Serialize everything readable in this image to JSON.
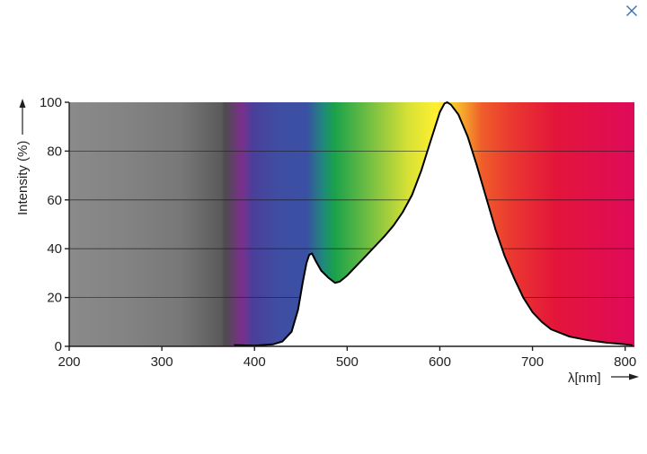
{
  "close_icon": "close-icon",
  "chart_data": {
    "type": "area",
    "title": "",
    "xlabel": "λ[nm]",
    "ylabel": "Intensity (%)",
    "xlim": [
      200,
      810
    ],
    "ylim": [
      0,
      100
    ],
    "x_ticks": [
      200,
      300,
      400,
      500,
      600,
      700,
      800
    ],
    "y_ticks": [
      0,
      20,
      40,
      60,
      80,
      100
    ],
    "grid": true,
    "legend": "none",
    "series": [
      {
        "x": [
          378,
          400,
          420,
          430,
          440,
          447,
          452,
          456,
          459,
          462,
          466,
          472,
          480,
          487,
          492,
          500,
          510,
          520,
          530,
          540,
          550,
          560,
          570,
          580,
          590,
          595,
          600,
          605,
          608,
          612,
          620,
          630,
          640,
          650,
          660,
          670,
          680,
          690,
          700,
          710,
          720,
          740,
          760,
          780,
          800,
          808
        ],
        "y": [
          0.5,
          0.3,
          0.8,
          2,
          6,
          15,
          26,
          34,
          37.5,
          38,
          35,
          31,
          28,
          26,
          26.5,
          29,
          33,
          37,
          41,
          45,
          49.5,
          55,
          62,
          72,
          84,
          90,
          96,
          99.5,
          100,
          99,
          95,
          86,
          74,
          61,
          48,
          37,
          28,
          20,
          14,
          10,
          7,
          4,
          2.5,
          1.5,
          0.8,
          0.5
        ]
      }
    ]
  }
}
